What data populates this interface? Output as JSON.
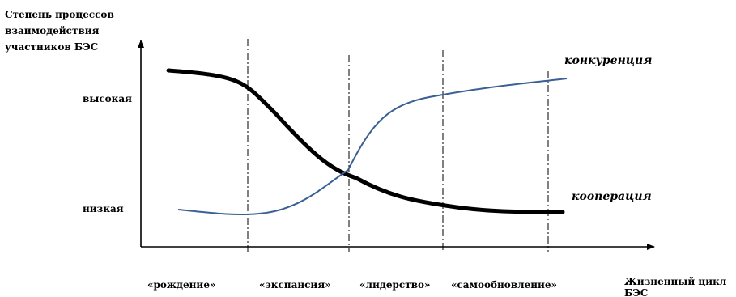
{
  "diagram": {
    "y_axis_title": [
      "Степень процессов",
      "взаимодействия",
      "участников БЭС"
    ],
    "y_levels": {
      "high": "высокая",
      "low": "низкая"
    },
    "x_axis_title": [
      "Жизненный цикл",
      "БЭС"
    ],
    "stages": [
      "«рождение»",
      "«экспансия»",
      "«лидерство»",
      "«самообновление»"
    ],
    "curves": {
      "competition": {
        "label": "конкуренция",
        "color": "#3a5f95"
      },
      "cooperation": {
        "label": "кооперация",
        "color": "#000000"
      }
    }
  }
}
